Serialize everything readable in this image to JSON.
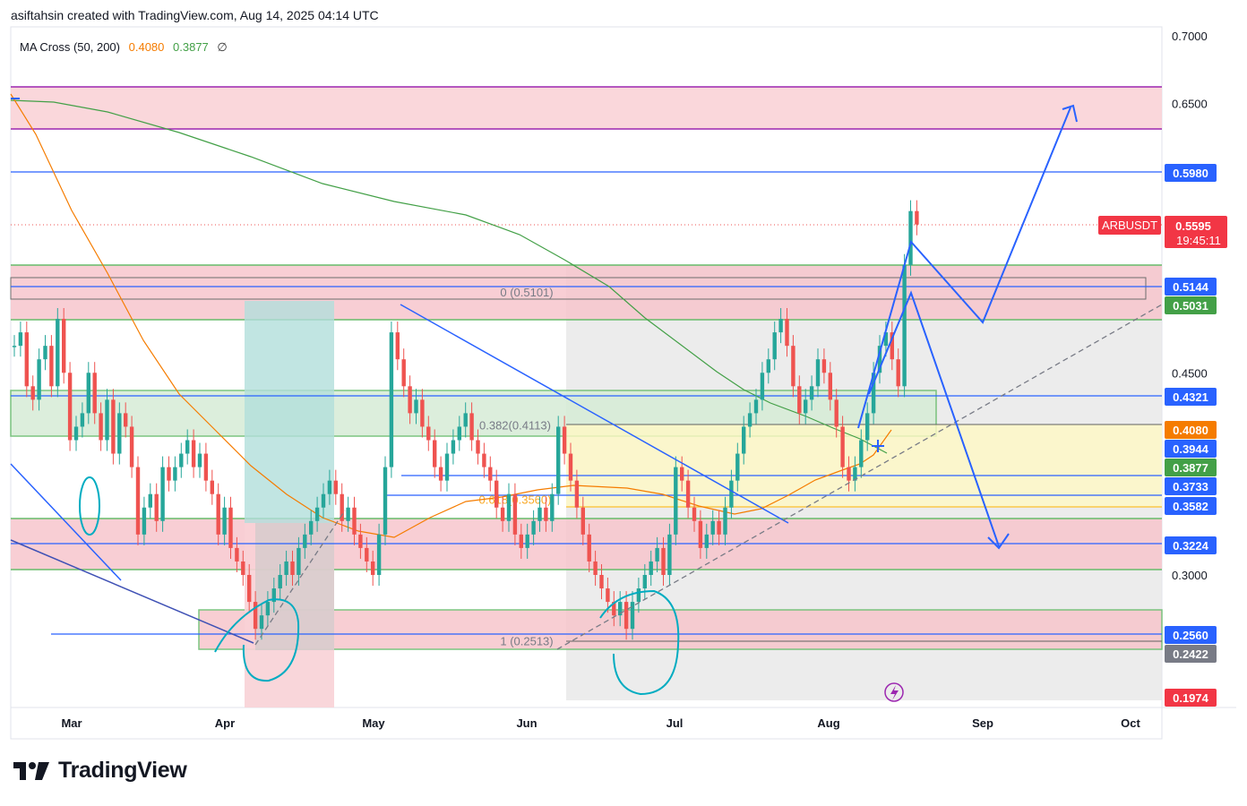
{
  "header": {
    "attribution": "asiftahsin created with TradingView.com, Aug 14, 2025 04:14 UTC"
  },
  "indicator": {
    "name": "MA Cross (50, 200)",
    "ma50": "0.4080",
    "ma200": "0.3877",
    "symbol": "∅"
  },
  "brand": {
    "name": "TradingView"
  },
  "colors": {
    "up": "#26a69a",
    "down": "#ef5350",
    "ma50": "#f57c00",
    "ma200": "#43a047",
    "blue_line": "#2962ff",
    "red_zone": "#f7c6cc",
    "green_zone": "#d4ecd4",
    "teal_box": "#b2dfdb",
    "grey_box": "#e0e0e0",
    "yellow_box": "#fff9c4",
    "purple": "#9c27b0"
  },
  "chart_data": {
    "type": "candlestick",
    "symbol": "ARBUSDT",
    "last_price": "0.5595",
    "countdown": "19:45:11",
    "x_ticks": [
      "Mar",
      "Apr",
      "May",
      "Jun",
      "Jul",
      "Aug",
      "Sep",
      "Oct"
    ],
    "y_ticks": [
      "0.7000",
      "0.6500",
      "0.4500",
      "0.3000"
    ],
    "ylim": [
      0.18,
      0.72
    ],
    "price_tags": [
      {
        "value": "0.5980",
        "kind": "blue"
      },
      {
        "value": "0.5144",
        "kind": "blue"
      },
      {
        "value": "0.5031",
        "kind": "green"
      },
      {
        "value": "0.4321",
        "kind": "blue"
      },
      {
        "value": "0.4080",
        "kind": "orange"
      },
      {
        "value": "0.3944",
        "kind": "blue"
      },
      {
        "value": "0.3877",
        "kind": "green"
      },
      {
        "value": "0.3733",
        "kind": "blue"
      },
      {
        "value": "0.3582",
        "kind": "blue"
      },
      {
        "value": "0.3224",
        "kind": "blue"
      },
      {
        "value": "0.2560",
        "kind": "blue"
      },
      {
        "value": "0.2422",
        "kind": "grey"
      },
      {
        "value": "0.1974",
        "kind": "red"
      }
    ],
    "fib_labels": [
      {
        "text": "0 (0.5101)",
        "value": 0.5101
      },
      {
        "text": "0.382(0.4113)",
        "value": 0.4113
      },
      {
        "text": "0.618(0.3560)",
        "value": 0.356
      },
      {
        "text": "1 (0.2513)",
        "value": 0.2513
      }
    ],
    "series": [
      {
        "name": "ARBUSDT",
        "close": [
          0.47,
          0.48,
          0.44,
          0.43,
          0.46,
          0.47,
          0.44,
          0.49,
          0.45,
          0.4,
          0.41,
          0.42,
          0.45,
          0.42,
          0.4,
          0.43,
          0.39,
          0.42,
          0.41,
          0.38,
          0.33,
          0.35,
          0.36,
          0.34,
          0.38,
          0.37,
          0.38,
          0.39,
          0.4,
          0.38,
          0.39,
          0.37,
          0.36,
          0.33,
          0.35,
          0.32,
          0.31,
          0.3,
          0.28,
          0.26,
          0.27,
          0.28,
          0.29,
          0.3,
          0.31,
          0.3,
          0.32,
          0.33,
          0.34,
          0.35,
          0.36,
          0.37,
          0.36,
          0.34,
          0.35,
          0.33,
          0.32,
          0.31,
          0.3,
          0.33,
          0.38,
          0.48,
          0.46,
          0.44,
          0.42,
          0.43,
          0.41,
          0.4,
          0.38,
          0.37,
          0.39,
          0.4,
          0.41,
          0.42,
          0.4,
          0.39,
          0.38,
          0.37,
          0.35,
          0.34,
          0.36,
          0.33,
          0.32,
          0.33,
          0.34,
          0.35,
          0.34,
          0.36,
          0.41,
          0.39,
          0.37,
          0.35,
          0.33,
          0.31,
          0.3,
          0.29,
          0.28,
          0.27,
          0.28,
          0.26,
          0.28,
          0.29,
          0.3,
          0.31,
          0.32,
          0.3,
          0.33,
          0.38,
          0.37,
          0.35,
          0.34,
          0.32,
          0.33,
          0.34,
          0.33,
          0.35,
          0.37,
          0.39,
          0.41,
          0.42,
          0.43,
          0.45,
          0.46,
          0.48,
          0.49,
          0.47,
          0.44,
          0.42,
          0.43,
          0.44,
          0.46,
          0.45,
          0.43,
          0.41,
          0.38,
          0.37,
          0.38,
          0.4,
          0.42,
          0.45,
          0.47,
          0.48,
          0.46,
          0.44,
          0.53,
          0.57,
          0.56
        ]
      }
    ]
  }
}
